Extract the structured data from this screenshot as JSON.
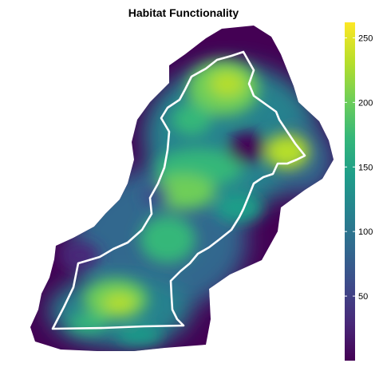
{
  "title": "Habitat Functionality",
  "legend": {
    "ticks": [
      {
        "value": 50,
        "label": "50"
      },
      {
        "value": 100,
        "label": "100"
      },
      {
        "value": 150,
        "label": "150"
      },
      {
        "value": 200,
        "label": "200"
      },
      {
        "value": 250,
        "label": "250"
      }
    ],
    "min": 0,
    "max": 262,
    "palette": "viridis",
    "colors": [
      "#440154",
      "#482878",
      "#3e4989",
      "#31688e",
      "#26828e",
      "#1f9e89",
      "#35b779",
      "#6ece58",
      "#b5de2b",
      "#fde725"
    ]
  },
  "map": {
    "boundary_color": "#ffffff",
    "raster_background": "#440154"
  }
}
